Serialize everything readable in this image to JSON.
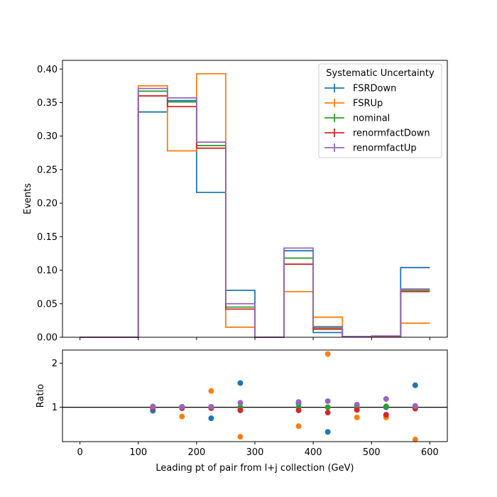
{
  "chart_data": {
    "type": "histogram-step",
    "colors": {
      "FSRDown": "#1f77b4",
      "FSRUp": "#ff7f0e",
      "nominal": "#2ca02c",
      "renormfactDown": "#d62728",
      "renormfactUp": "#9467bd"
    },
    "main": {
      "ylabel": "Events",
      "xlim": [
        -30,
        630
      ],
      "ylim": [
        0,
        0.413
      ],
      "yticks": [
        "0.00",
        "0.05",
        "0.10",
        "0.15",
        "0.20",
        "0.25",
        "0.30",
        "0.35",
        "0.40"
      ],
      "ytick_values": [
        0,
        0.05,
        0.1,
        0.15,
        0.2,
        0.25,
        0.3,
        0.35,
        0.4
      ],
      "bin_edges": [
        0,
        100,
        150,
        200,
        250,
        300,
        350,
        400,
        450,
        500,
        550,
        600
      ],
      "legend_title": "Systematic Uncertainty",
      "legend_position": "upper right",
      "series": [
        {
          "name": "FSRDown",
          "values": [
            0,
            0.336,
            0.353,
            0.216,
            0.07,
            0,
            0.129,
            0.007,
            0.001,
            0.001,
            0.104
          ]
        },
        {
          "name": "FSRUp",
          "values": [
            0,
            0.375,
            0.278,
            0.393,
            0.015,
            0,
            0.068,
            0.03,
            0.001,
            0.001,
            0.021
          ]
        },
        {
          "name": "nominal",
          "values": [
            0,
            0.367,
            0.351,
            0.286,
            0.045,
            0,
            0.118,
            0.014,
            0.001,
            0.001,
            0.07
          ]
        },
        {
          "name": "renormfactDown",
          "values": [
            0,
            0.36,
            0.344,
            0.282,
            0.042,
            0,
            0.109,
            0.012,
            0.001,
            0.001,
            0.068
          ]
        },
        {
          "name": "renormfactUp",
          "values": [
            0,
            0.371,
            0.357,
            0.291,
            0.05,
            0,
            0.133,
            0.016,
            0.001,
            0.002,
            0.072
          ]
        }
      ]
    },
    "ratio": {
      "ylabel": "Ratio",
      "xlabel": "Leading pt of pair from l+j collection (GeV)",
      "xlim": [
        -30,
        630
      ],
      "ylim": [
        0.22,
        2.3
      ],
      "yticks": [
        "1",
        "2"
      ],
      "ytick_values": [
        1,
        2
      ],
      "xticks": [
        "0",
        "100",
        "200",
        "300",
        "400",
        "500",
        "600"
      ],
      "xtick_values": [
        0,
        100,
        200,
        300,
        400,
        500,
        600
      ],
      "reference_line": 1,
      "x": [
        125,
        175,
        225,
        275,
        375,
        425,
        475,
        525,
        575
      ],
      "series": [
        {
          "name": "FSRDown",
          "values": [
            0.92,
            1.01,
            0.75,
            1.55,
            1.09,
            0.44,
            1.0,
            1.0,
            1.5
          ]
        },
        {
          "name": "FSRUp",
          "values": [
            1.02,
            0.79,
            1.37,
            0.33,
            0.57,
            2.21,
            0.77,
            0.77,
            0.27
          ]
        },
        {
          "name": "nominal",
          "values": [
            1.0,
            1.0,
            1.0,
            1.0,
            1.0,
            1.0,
            1.0,
            1.02,
            1.0
          ]
        },
        {
          "name": "renormfactDown",
          "values": [
            0.98,
            0.98,
            0.98,
            0.93,
            0.93,
            0.88,
            0.94,
            0.83,
            0.97
          ]
        },
        {
          "name": "renormfactUp",
          "values": [
            1.01,
            1.01,
            1.01,
            1.1,
            1.12,
            1.14,
            1.06,
            1.19,
            1.03
          ]
        }
      ]
    }
  }
}
